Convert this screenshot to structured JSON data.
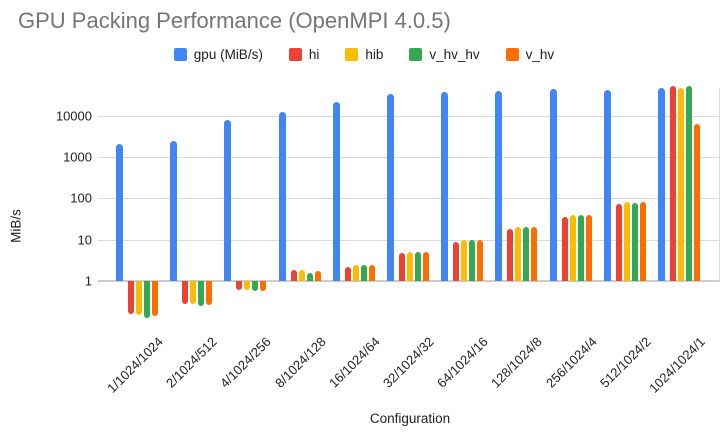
{
  "chart_data": {
    "type": "bar",
    "title": "GPU Packing Performance (OpenMPI 4.0.5)",
    "xlabel": "Configuration",
    "ylabel": "MiB/s",
    "y_scale": "log",
    "y_ticks": [
      1,
      10,
      100,
      1000,
      10000
    ],
    "ylim": [
      0.1,
      70000
    ],
    "grid": true,
    "legend_position": "top",
    "categories": [
      "1/1024/1024",
      "2/1024/512",
      "4/1024/256",
      "8/1024/128",
      "16/1024/64",
      "32/1024/32",
      "64/1024/16",
      "128/1024/8",
      "256/1024/4",
      "512/1024/2",
      "1024/1024/1"
    ],
    "series": [
      {
        "name": "gpu (MiB/s)",
        "color": "#4285F4",
        "values": [
          2100,
          2400,
          7800,
          12500,
          22000,
          33000,
          38000,
          40000,
          44000,
          42000,
          46000
        ]
      },
      {
        "name": "hi",
        "color": "#EA4335",
        "values": [
          0.16,
          0.27,
          0.62,
          1.8,
          2.2,
          4.8,
          9,
          18,
          35,
          75,
          52000
        ]
      },
      {
        "name": "hib",
        "color": "#FBBC04",
        "values": [
          0.15,
          0.27,
          0.6,
          1.8,
          2.4,
          5,
          10,
          20,
          40,
          80,
          47000
        ]
      },
      {
        "name": "v_hv_hv",
        "color": "#34A853",
        "values": [
          0.13,
          0.25,
          0.58,
          1.6,
          2.5,
          5,
          10,
          20,
          40,
          78,
          52000
        ]
      },
      {
        "name": "v_hv",
        "color": "#FF6D01",
        "values": [
          0.14,
          0.26,
          0.58,
          1.7,
          2.4,
          5,
          10,
          20,
          40,
          80,
          6300
        ]
      }
    ]
  }
}
